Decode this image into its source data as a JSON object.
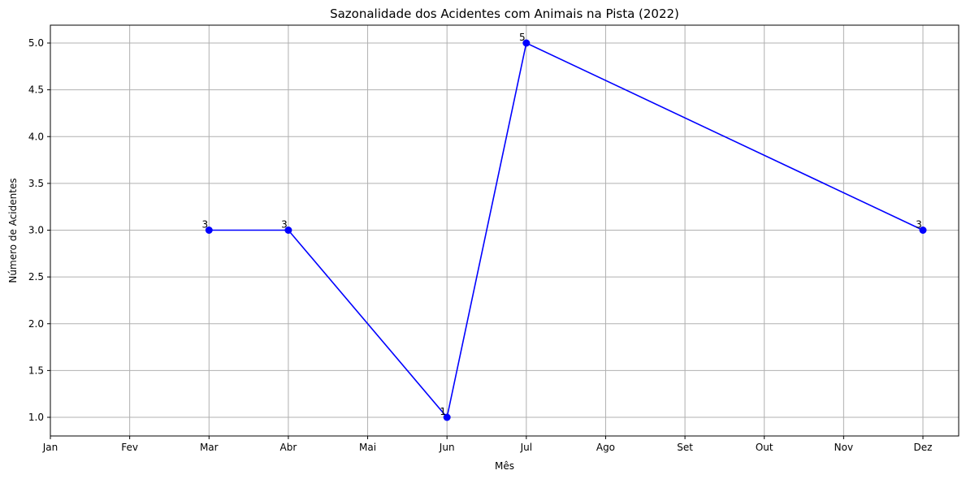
{
  "chart_data": {
    "type": "line",
    "title": "Sazonalidade dos Acidentes com Animais na Pista (2022)",
    "xlabel": "Mês",
    "ylabel": "Número de Acidentes",
    "x_ticks": [
      "Jan",
      "Fev",
      "Mar",
      "Abr",
      "Mai",
      "Jun",
      "Jul",
      "Ago",
      "Set",
      "Out",
      "Nov",
      "Dez"
    ],
    "y_ticks": [
      "1.0",
      "1.5",
      "2.0",
      "2.5",
      "3.0",
      "3.5",
      "4.0",
      "4.5",
      "5.0"
    ],
    "xlim": [
      1,
      12
    ],
    "ylim": [
      0.8,
      5.2
    ],
    "grid": true,
    "series": [
      {
        "color": "#0000ff",
        "marker": "circle",
        "points": [
          {
            "month": "Mar",
            "x": 3,
            "y": 3,
            "label": "3"
          },
          {
            "month": "Abr",
            "x": 4,
            "y": 3,
            "label": "3"
          },
          {
            "month": "Jun",
            "x": 6,
            "y": 1,
            "label": "1"
          },
          {
            "month": "Jul",
            "x": 7,
            "y": 5,
            "label": "5"
          },
          {
            "month": "Dez",
            "x": 12,
            "y": 3,
            "label": "3"
          }
        ]
      }
    ]
  }
}
